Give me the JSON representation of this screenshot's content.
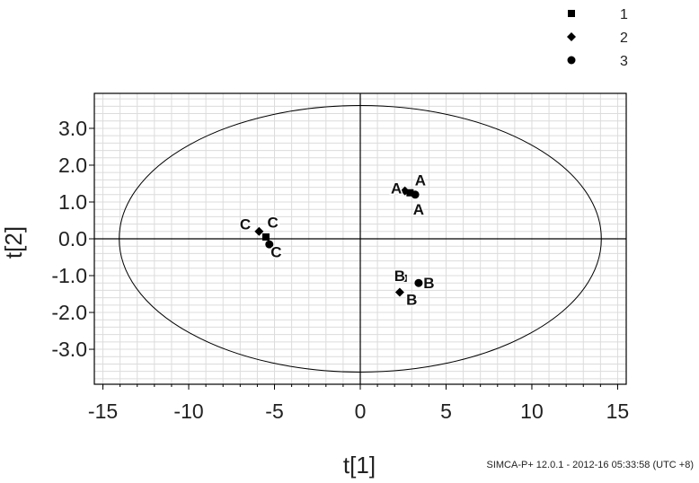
{
  "chart_data": {
    "type": "scatter",
    "xlabel": "t[1]",
    "ylabel": "t[2]",
    "xlim": [
      -15.5,
      15.5
    ],
    "ylim": [
      -3.95,
      3.95
    ],
    "xticks": [
      -15,
      -10,
      -5,
      0,
      5,
      10,
      15
    ],
    "xtick_labels": [
      "-15",
      "-10",
      "-5",
      "0",
      "5",
      "10",
      "15"
    ],
    "yticks": [
      3.0,
      2.0,
      1.0,
      0.0,
      -1.0,
      -2.0,
      -3.0
    ],
    "ytick_labels": [
      "3.0",
      "2.0",
      "1.0",
      "0.0",
      "-1.0",
      "-2.0",
      "-3.0"
    ],
    "grid": true,
    "ellipse": {
      "cx": 0,
      "cy": 0,
      "rx": 14.05,
      "ry": 3.62
    },
    "legend": {
      "position": "top-right",
      "entries": [
        {
          "label": "1",
          "marker": "square"
        },
        {
          "label": "2",
          "marker": "diamond"
        },
        {
          "label": "3",
          "marker": "circle"
        }
      ]
    },
    "series": [
      {
        "marker": "square",
        "points": [
          {
            "x": 2.9,
            "y": 1.25,
            "label": "A"
          },
          {
            "x": 2.5,
            "y": -1.07,
            "label": "B"
          },
          {
            "x": -5.5,
            "y": 0.05,
            "label": "C"
          }
        ]
      },
      {
        "marker": "diamond",
        "points": [
          {
            "x": 2.6,
            "y": 1.3,
            "label": "A"
          },
          {
            "x": 2.3,
            "y": -1.45,
            "label": "B"
          },
          {
            "x": -5.9,
            "y": 0.2,
            "label": "C"
          }
        ]
      },
      {
        "marker": "circle",
        "points": [
          {
            "x": 3.2,
            "y": 1.2,
            "label": "A"
          },
          {
            "x": 3.4,
            "y": -1.2,
            "label": "B"
          },
          {
            "x": -5.3,
            "y": -0.15,
            "label": "C"
          }
        ]
      }
    ],
    "point_labels": [
      {
        "text": "A",
        "x": 2.1,
        "y": 1.38
      },
      {
        "text": "A",
        "x": 3.5,
        "y": 1.6
      },
      {
        "text": "A",
        "x": 3.4,
        "y": 0.8
      },
      {
        "text": "B",
        "x": 2.3,
        "y": -1.0
      },
      {
        "text": "B",
        "x": 4.0,
        "y": -1.2
      },
      {
        "text": "B",
        "x": 3.0,
        "y": -1.65
      },
      {
        "text": "C",
        "x": -6.7,
        "y": 0.4
      },
      {
        "text": "C",
        "x": -5.1,
        "y": 0.45
      },
      {
        "text": "C",
        "x": -4.9,
        "y": -0.35
      }
    ]
  },
  "footer_text": "SIMCA-P+ 12.0.1 - 2012-16 05:33:58 (UTC +8)"
}
